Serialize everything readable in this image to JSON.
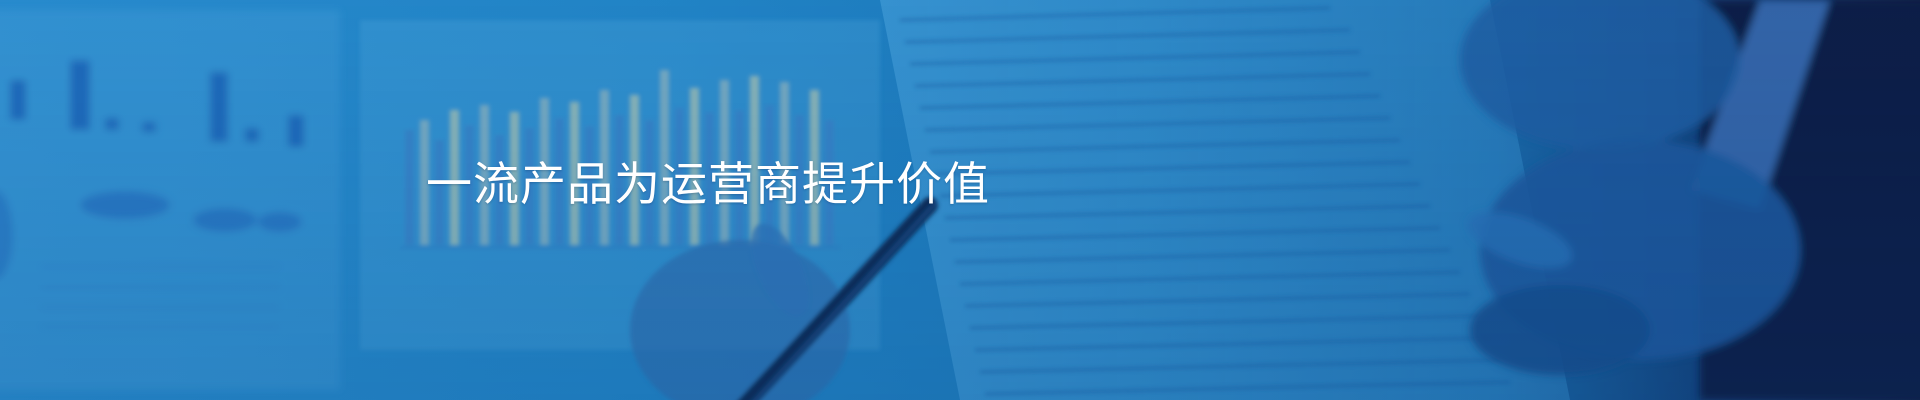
{
  "banner": {
    "slogan": "一流产品为运营商提升价值",
    "background_icon": "business-document-review-photo",
    "colors": {
      "overlay_blue": "#2287ca",
      "deep_navy": "#0b1f46",
      "text": "#ffffff"
    }
  }
}
